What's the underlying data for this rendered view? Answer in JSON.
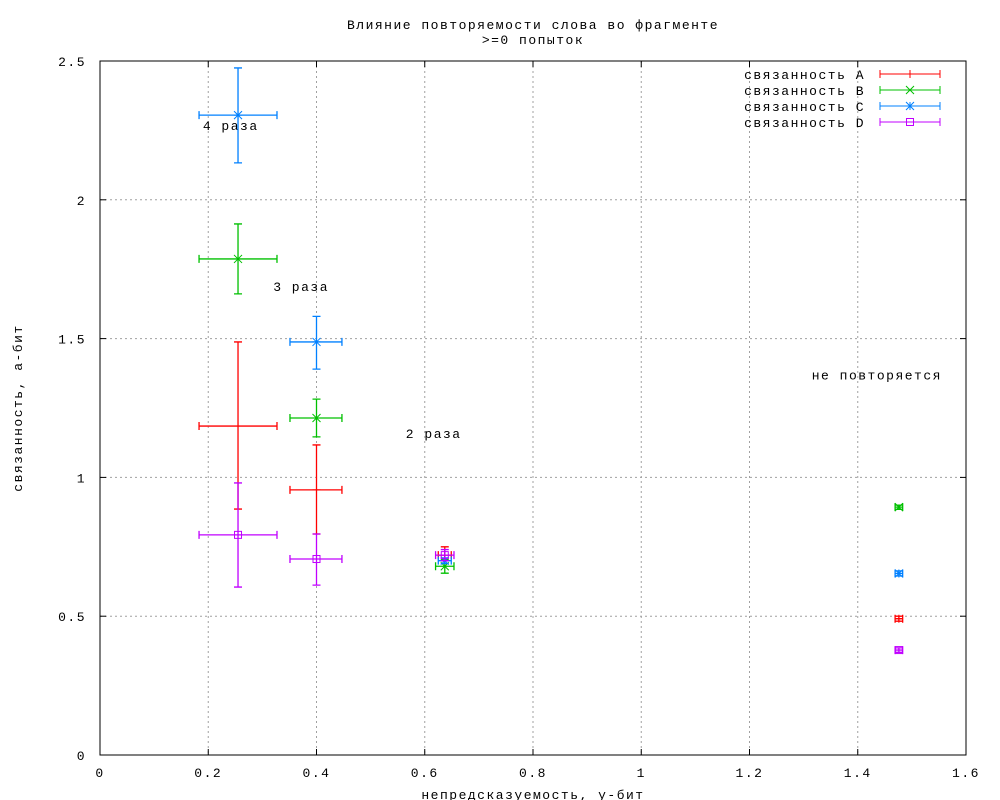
{
  "chart_data": {
    "type": "scatter",
    "title": "Влияние повторяемости слова во фрагменте",
    "subtitle": ">=0 попыток",
    "xlabel": "непредсказуемость, у-бит",
    "ylabel": "связанность, а-бит",
    "xlim": [
      0,
      1.6
    ],
    "ylim": [
      0,
      2.5
    ],
    "xticks": [
      "0",
      "0.2",
      "0.4",
      "0.6",
      "0.8",
      "1",
      "1.2",
      "1.4",
      "1.6"
    ],
    "xtick_values": [
      0,
      0.2,
      0.4,
      0.6,
      0.8,
      1,
      1.2,
      1.4,
      1.6
    ],
    "yticks": [
      "0",
      "0.5",
      "1",
      "1.5",
      "2",
      "2.5"
    ],
    "ytick_values": [
      0,
      0.5,
      1,
      1.5,
      2,
      2.5
    ],
    "grid": true,
    "legend_position": "top-right",
    "series": [
      {
        "name": "связанность A",
        "color": "#ff0000",
        "marker": "plus",
        "points": [
          {
            "x": 0.255,
            "y": 1.185,
            "xlo": 0.183,
            "xhi": 0.327,
            "ylo": 0.886,
            "yhi": 1.488
          },
          {
            "x": 0.4,
            "y": 0.955,
            "xlo": 0.351,
            "xhi": 0.447,
            "ylo": 0.796,
            "yhi": 1.117
          },
          {
            "x": 0.637,
            "y": 0.72,
            "xlo": 0.625,
            "xhi": 0.649,
            "ylo": 0.7,
            "yhi": 0.75
          },
          {
            "x": 1.476,
            "y": 0.491,
            "xlo": 1.469,
            "xhi": 1.483,
            "ylo": 0.482,
            "yhi": 0.5
          }
        ]
      },
      {
        "name": "связанность B",
        "color": "#00c000",
        "marker": "cross",
        "points": [
          {
            "x": 0.255,
            "y": 1.787,
            "xlo": 0.183,
            "xhi": 0.327,
            "ylo": 1.661,
            "yhi": 1.913
          },
          {
            "x": 0.4,
            "y": 1.214,
            "xlo": 0.351,
            "xhi": 0.447,
            "ylo": 1.146,
            "yhi": 1.282
          },
          {
            "x": 0.637,
            "y": 0.68,
            "xlo": 0.62,
            "xhi": 0.654,
            "ylo": 0.655,
            "yhi": 0.705
          },
          {
            "x": 1.476,
            "y": 0.893,
            "xlo": 1.469,
            "xhi": 1.483,
            "ylo": 0.885,
            "yhi": 0.9
          }
        ]
      },
      {
        "name": "связанность C",
        "color": "#0080ff",
        "marker": "star",
        "points": [
          {
            "x": 0.255,
            "y": 2.305,
            "xlo": 0.183,
            "xhi": 0.327,
            "ylo": 2.133,
            "yhi": 2.475
          },
          {
            "x": 0.4,
            "y": 1.488,
            "xlo": 0.351,
            "xhi": 0.447,
            "ylo": 1.39,
            "yhi": 1.58
          },
          {
            "x": 0.637,
            "y": 0.7,
            "xlo": 0.625,
            "xhi": 0.649,
            "ylo": 0.69,
            "yhi": 0.71
          },
          {
            "x": 1.476,
            "y": 0.654,
            "xlo": 1.469,
            "xhi": 1.483,
            "ylo": 0.645,
            "yhi": 0.663
          }
        ]
      },
      {
        "name": "связанность D",
        "color": "#c000ff",
        "marker": "square",
        "points": [
          {
            "x": 0.255,
            "y": 0.793,
            "xlo": 0.183,
            "xhi": 0.327,
            "ylo": 0.605,
            "yhi": 0.98
          },
          {
            "x": 0.4,
            "y": 0.706,
            "xlo": 0.351,
            "xhi": 0.447,
            "ylo": 0.612,
            "yhi": 0.796
          },
          {
            "x": 0.637,
            "y": 0.72,
            "xlo": 0.62,
            "xhi": 0.654,
            "ylo": 0.7,
            "yhi": 0.74
          },
          {
            "x": 1.476,
            "y": 0.378,
            "xlo": 1.469,
            "xhi": 1.483,
            "ylo": 0.37,
            "yhi": 0.386
          }
        ]
      }
    ],
    "annotations": [
      {
        "text": "4 раза",
        "x": 0.19,
        "y": 2.27
      },
      {
        "text": "3 раза",
        "x": 0.32,
        "y": 1.69
      },
      {
        "text": "2 раза",
        "x": 0.565,
        "y": 1.16
      },
      {
        "text": "не повторяется",
        "x": 1.315,
        "y": 1.37
      }
    ]
  }
}
